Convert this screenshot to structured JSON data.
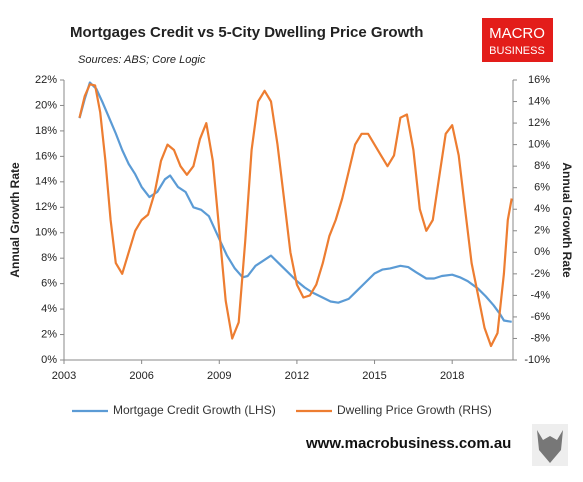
{
  "chart_data": {
    "type": "line",
    "title": "Mortgages Credit vs 5-City Dwelling Price Growth",
    "subtitle": "Sources: ABS; Core Logic",
    "y_label": "Annual Growth Rate",
    "y2_label": "Annual Growth Rate",
    "logo": [
      "MACRO",
      "BUSINESS"
    ],
    "footer": "www.macrobusiness.com.au",
    "xlim": [
      2003,
      2020.35
    ],
    "xticks": [
      2003,
      2006,
      2009,
      2012,
      2015,
      2018
    ],
    "ylim": [
      0,
      22
    ],
    "yticks": [
      {
        "value": 0,
        "label": "0%"
      },
      {
        "value": 2,
        "label": "2%"
      },
      {
        "value": 4,
        "label": "4%"
      },
      {
        "value": 6,
        "label": "6%"
      },
      {
        "value": 8,
        "label": "8%"
      },
      {
        "value": 10,
        "label": "10%"
      },
      {
        "value": 12,
        "label": "12%"
      },
      {
        "value": 14,
        "label": "14%"
      },
      {
        "value": 16,
        "label": "16%"
      },
      {
        "value": 18,
        "label": "18%"
      },
      {
        "value": 20,
        "label": "20%"
      },
      {
        "value": 22,
        "label": "22%"
      }
    ],
    "y2lim": [
      -10,
      16
    ],
    "y2ticks": [
      {
        "value": -10,
        "label": "-10%"
      },
      {
        "value": -8,
        "label": "-8%"
      },
      {
        "value": -6,
        "label": "-6%"
      },
      {
        "value": -4,
        "label": "-4%"
      },
      {
        "value": -2,
        "label": "-2%"
      },
      {
        "value": 0,
        "label": "0%"
      },
      {
        "value": 2,
        "label": "2%"
      },
      {
        "value": 4,
        "label": "4%"
      },
      {
        "value": 6,
        "label": "6%"
      },
      {
        "value": 8,
        "label": "8%"
      },
      {
        "value": 10,
        "label": "10%"
      },
      {
        "value": 12,
        "label": "12%"
      },
      {
        "value": 14,
        "label": "14%"
      },
      {
        "value": 16,
        "label": "16%"
      }
    ],
    "grid": false,
    "series": [
      {
        "name": "Mortgage Credit Growth (LHS)",
        "color": "#5b9bd5",
        "x": [
          2003.6,
          2003.8,
          2004.0,
          2004.25,
          2004.5,
          2004.75,
          2005,
          2005.25,
          2005.5,
          2005.75,
          2006,
          2006.3,
          2006.6,
          2006.9,
          2007.1,
          2007.4,
          2007.7,
          2008,
          2008.3,
          2008.6,
          2009,
          2009.3,
          2009.6,
          2009.9,
          2010.1,
          2010.4,
          2010.7,
          2011,
          2011.3,
          2011.6,
          2012,
          2012.3,
          2012.6,
          2013,
          2013.3,
          2013.6,
          2014,
          2014.3,
          2014.6,
          2015,
          2015.3,
          2015.6,
          2016,
          2016.3,
          2016.6,
          2017,
          2017.3,
          2017.6,
          2018,
          2018.3,
          2018.6,
          2019,
          2019.3,
          2019.6,
          2019.85,
          2020.0,
          2020.3
        ],
        "values": [
          19.0,
          20.5,
          21.8,
          21.3,
          20.2,
          19.0,
          17.8,
          16.5,
          15.4,
          14.6,
          13.6,
          12.8,
          13.2,
          14.2,
          14.5,
          13.6,
          13.2,
          12.0,
          11.8,
          11.3,
          9.5,
          8.2,
          7.2,
          6.5,
          6.6,
          7.4,
          7.8,
          8.2,
          7.6,
          7.0,
          6.2,
          5.7,
          5.3,
          4.9,
          4.6,
          4.5,
          4.8,
          5.4,
          6.0,
          6.8,
          7.1,
          7.2,
          7.4,
          7.3,
          6.9,
          6.4,
          6.4,
          6.6,
          6.7,
          6.5,
          6.2,
          5.6,
          5.0,
          4.3,
          3.6,
          3.1,
          3.0
        ]
      },
      {
        "name": "Dwelling Price Growth (RHS)",
        "color": "#ed7d31",
        "x": [
          2003.6,
          2003.8,
          2004.0,
          2004.2,
          2004.4,
          2004.6,
          2004.8,
          2005.0,
          2005.25,
          2005.5,
          2005.75,
          2006.0,
          2006.25,
          2006.5,
          2006.75,
          2007.0,
          2007.25,
          2007.5,
          2007.75,
          2008.0,
          2008.25,
          2008.5,
          2008.75,
          2009.0,
          2009.25,
          2009.5,
          2009.75,
          2010.0,
          2010.25,
          2010.5,
          2010.75,
          2011.0,
          2011.25,
          2011.5,
          2011.75,
          2012.0,
          2012.25,
          2012.5,
          2012.75,
          2013.0,
          2013.25,
          2013.5,
          2013.75,
          2014.0,
          2014.25,
          2014.5,
          2014.75,
          2015.0,
          2015.25,
          2015.5,
          2015.75,
          2016.0,
          2016.25,
          2016.5,
          2016.75,
          2017.0,
          2017.25,
          2017.5,
          2017.75,
          2018.0,
          2018.25,
          2018.5,
          2018.75,
          2019.0,
          2019.25,
          2019.5,
          2019.75,
          2020.0,
          2020.15,
          2020.3
        ],
        "values": [
          12.5,
          14.5,
          15.6,
          15.5,
          13.0,
          8.5,
          3.0,
          -1.0,
          -2.0,
          0.0,
          2.0,
          3.0,
          3.5,
          5.5,
          8.5,
          10.0,
          9.5,
          8.0,
          7.2,
          8.0,
          10.5,
          12.0,
          8.5,
          2.0,
          -4.5,
          -8.0,
          -6.5,
          1.0,
          9.5,
          14.0,
          15.0,
          14.0,
          10.0,
          5.0,
          0.0,
          -3.0,
          -4.2,
          -4.0,
          -3.0,
          -1.0,
          1.5,
          3.0,
          5.0,
          7.5,
          10.0,
          11.0,
          11.0,
          10.0,
          9.0,
          8.0,
          9.0,
          12.5,
          12.8,
          9.5,
          4.0,
          2.0,
          3.0,
          7.0,
          11.0,
          11.8,
          9.0,
          4.0,
          -1.0,
          -4.0,
          -7.0,
          -8.7,
          -7.5,
          -2.0,
          3.0,
          5.0
        ]
      }
    ]
  }
}
